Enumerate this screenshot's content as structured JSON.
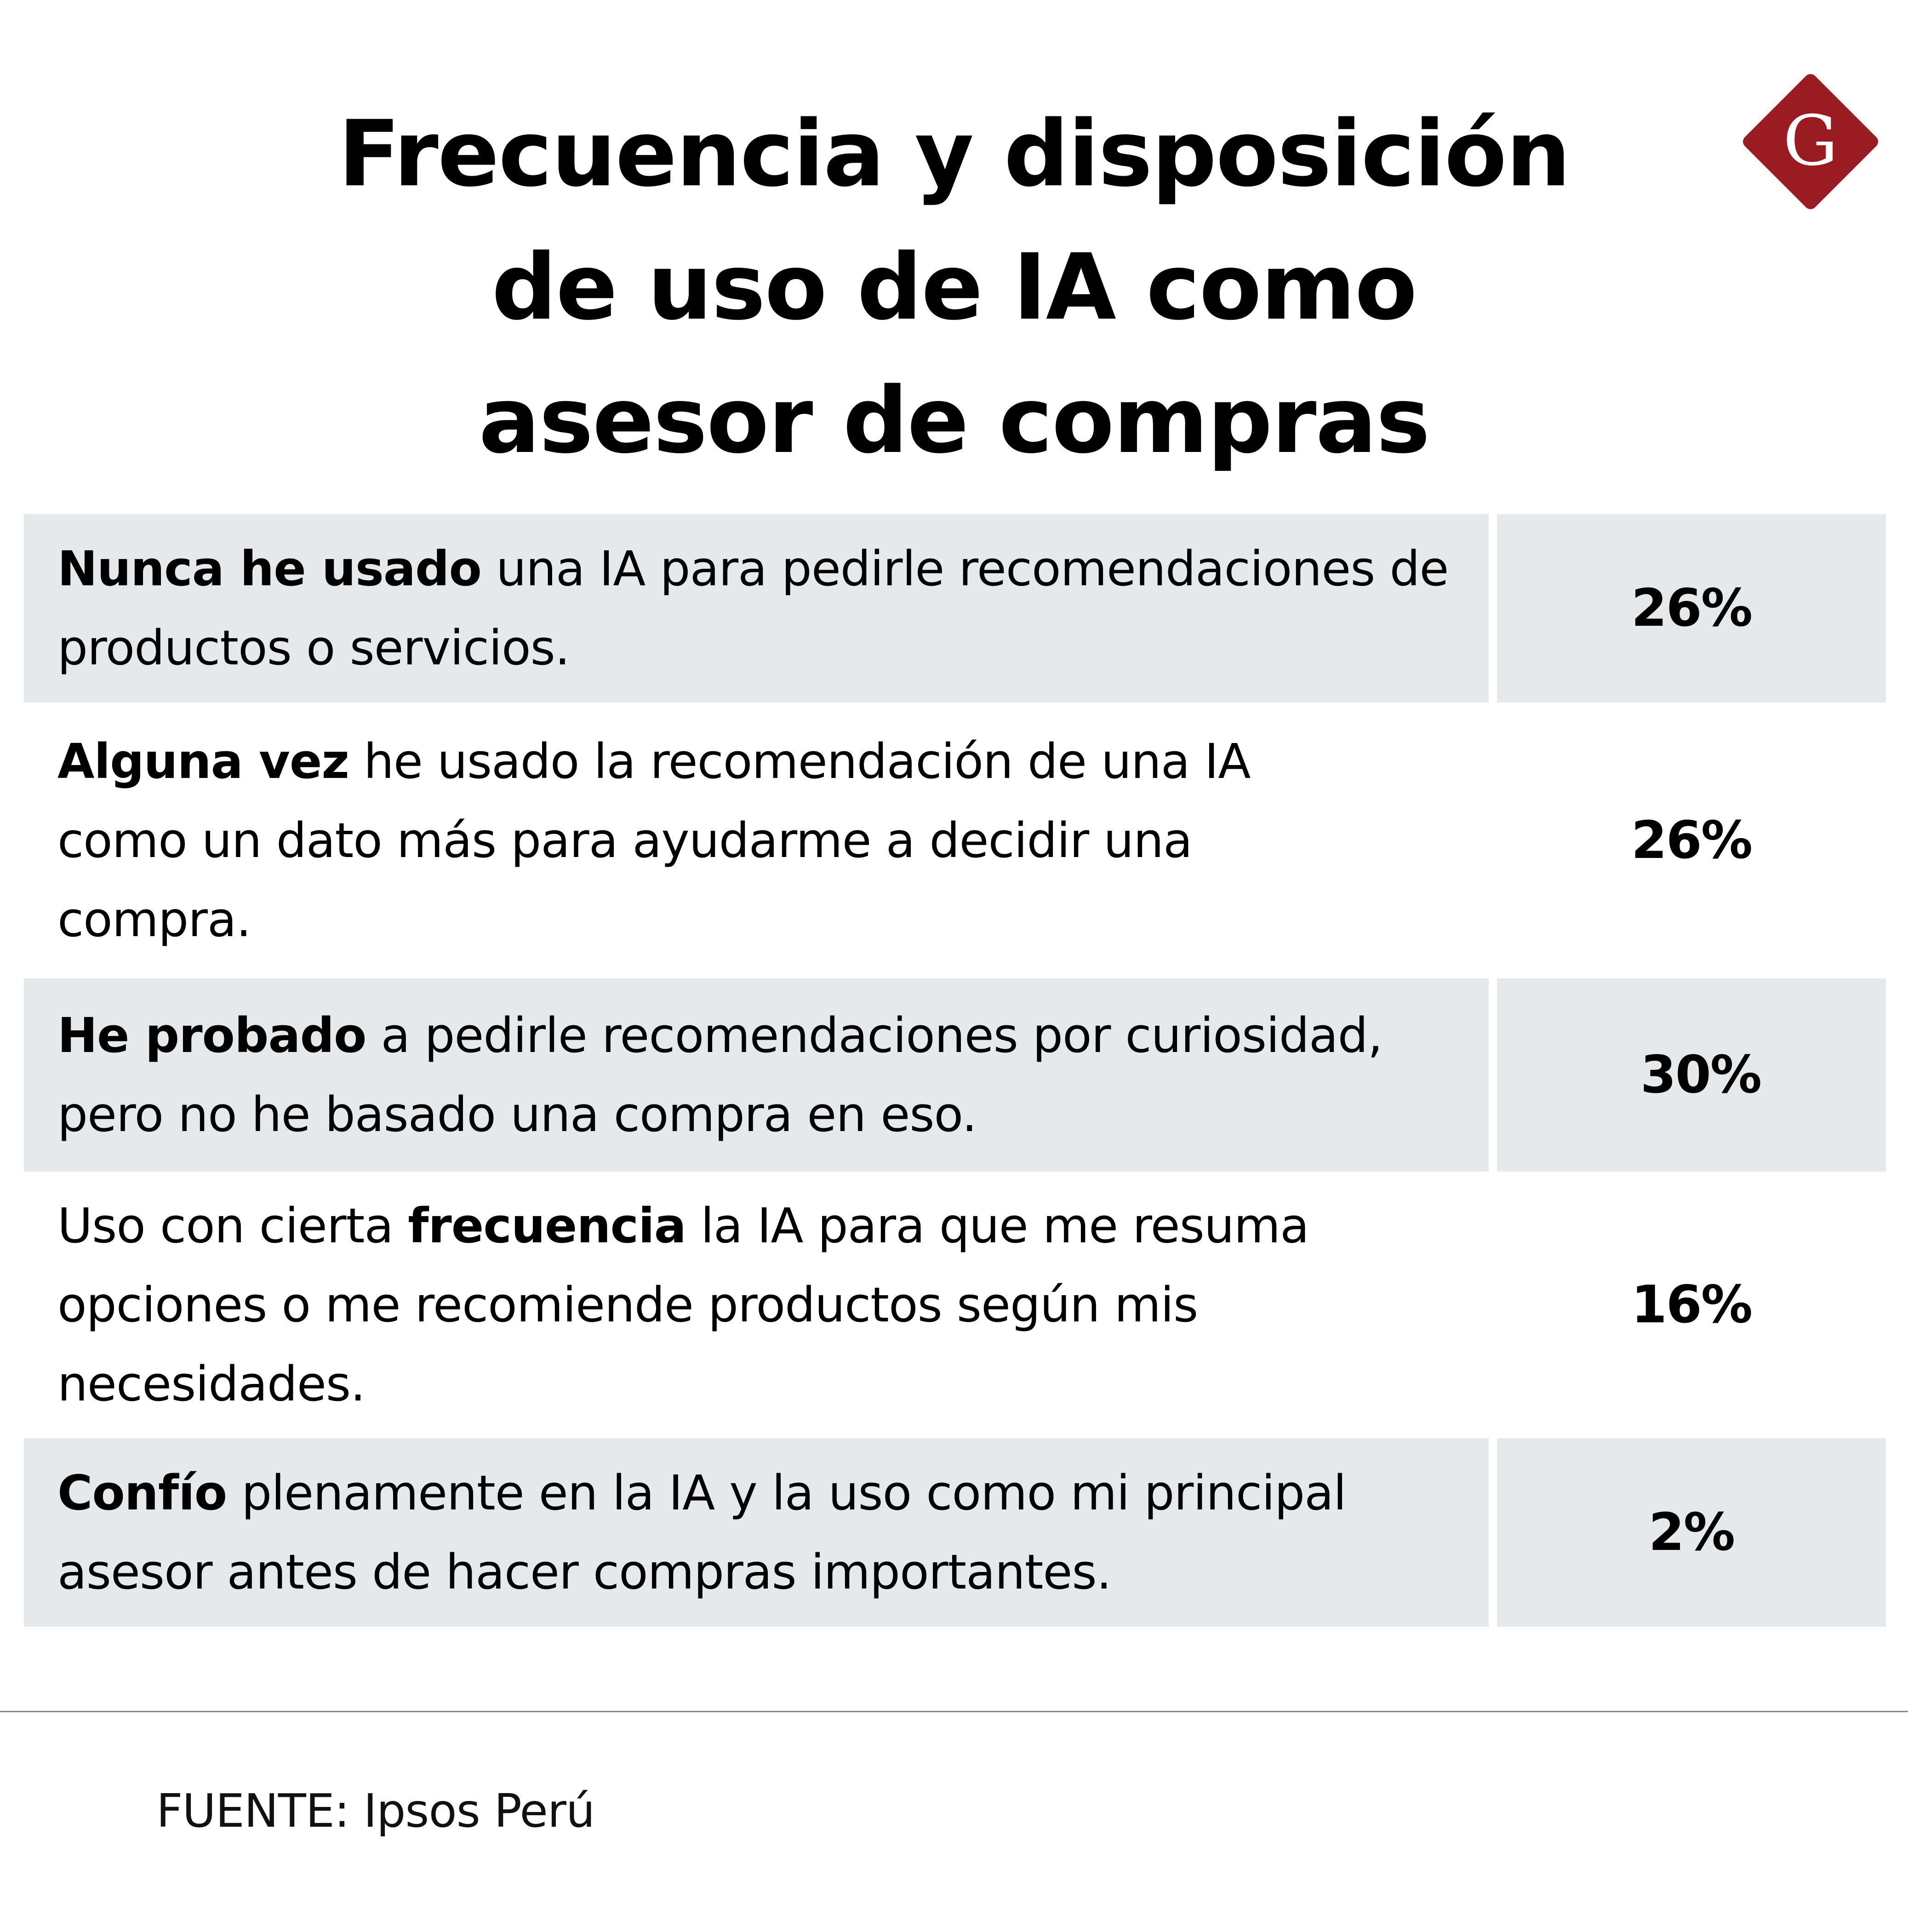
{
  "title": {
    "line1": "Frecuencia y disposición",
    "line2": "de uso de IA como",
    "line3": "asesor de compras"
  },
  "logo": {
    "letter": "G",
    "icon": "diamond-g-logo"
  },
  "colors": {
    "row_shade": "#e6e9ec",
    "logo_red": "#9b1b22",
    "text": "#000000",
    "divider": "#8a8a8a"
  },
  "rows": [
    {
      "bold_lead": "Nunca he usado",
      "before": "",
      "after": " una IA para pedirle recomendaciones de productos o servicios.",
      "value_label": "26%"
    },
    {
      "bold_lead": "Alguna vez",
      "before": "",
      "after": " he usado la recomendación de una IA como un dato más para ayudarme a decidir una compra.",
      "value_label": "26%"
    },
    {
      "bold_lead": "He probado",
      "before": "",
      "after": " a pedirle recomendaciones por curiosidad, pero no he basado una compra en eso.",
      "value_label": "30%"
    },
    {
      "bold_lead": "frecuencia",
      "before": "Uso con cierta ",
      "after": " la IA para que me resuma opciones o me recomiende productos según mis necesidades.",
      "value_label": "16%"
    },
    {
      "bold_lead": "Confío",
      "before": "",
      "after": " plenamente en la IA y la uso como mi principal asesor antes de hacer compras importantes.",
      "value_label": "2%"
    }
  ],
  "source": "FUENTE: Ipsos Perú",
  "chart_data": {
    "type": "table",
    "title": "Frecuencia y disposición de uso de IA como asesor de compras",
    "categories": [
      "Nunca he usado una IA para pedirle recomendaciones de productos o servicios.",
      "Alguna vez he usado la recomendación de una IA como un dato más para ayudarme a decidir una compra.",
      "He probado a pedirle recomendaciones por curiosidad, pero no he basado una compra en eso.",
      "Uso con cierta frecuencia la IA para que me resuma opciones o me recomiende productos según mis necesidades.",
      "Confío plenamente en la IA y la uso como mi principal asesor antes de hacer compras importantes."
    ],
    "values": [
      26,
      26,
      30,
      16,
      2
    ],
    "unit": "%",
    "source": "FUENTE: Ipsos Perú"
  }
}
